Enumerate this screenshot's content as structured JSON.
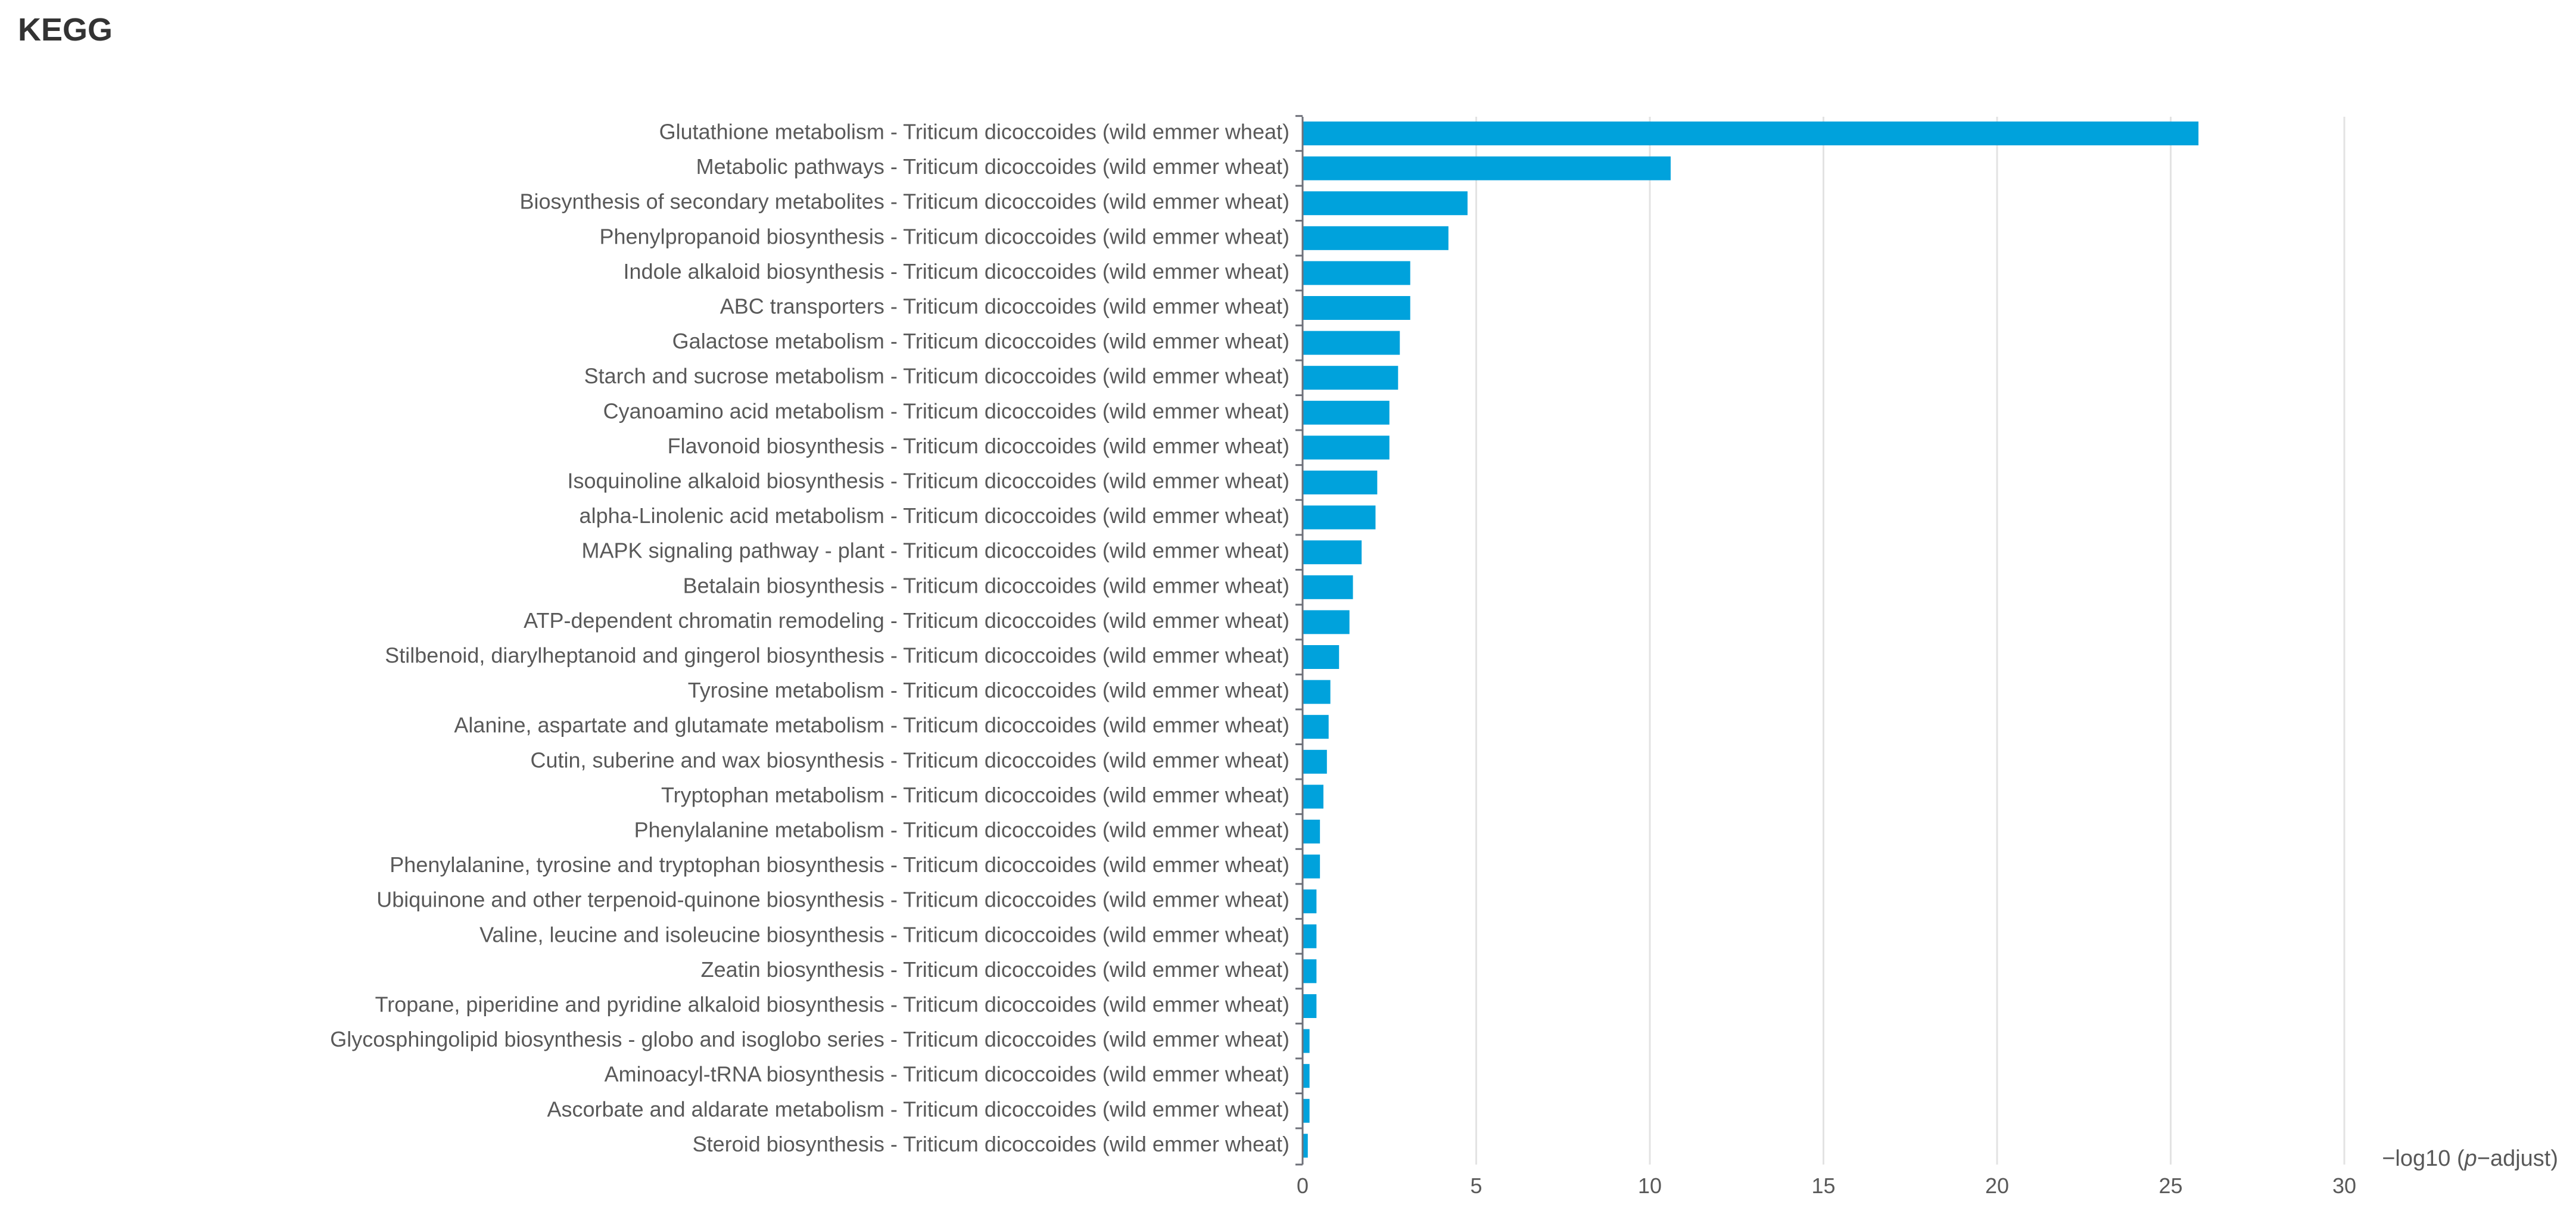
{
  "page": {
    "title": "KEGG"
  },
  "chart_data": {
    "type": "bar",
    "orientation": "horizontal",
    "xlabel": "−log10 (p−adjust)",
    "xlabel_parts": {
      "prefix": "−log10 (",
      "italic": "p",
      "suffix": "−adjust)"
    },
    "xlim": [
      0,
      30
    ],
    "xticks": [
      0,
      5,
      10,
      15,
      20,
      25,
      30
    ],
    "grid": "vertical",
    "bar_color": "#00a2dc",
    "categories": [
      "Glutathione metabolism - Triticum dicoccoides (wild emmer wheat)",
      "Metabolic pathways - Triticum dicoccoides (wild emmer wheat)",
      "Biosynthesis of secondary metabolites - Triticum dicoccoides (wild emmer wheat)",
      "Phenylpropanoid biosynthesis - Triticum dicoccoides (wild emmer wheat)",
      "Indole alkaloid biosynthesis - Triticum dicoccoides (wild emmer wheat)",
      "ABC transporters - Triticum dicoccoides (wild emmer wheat)",
      "Galactose metabolism - Triticum dicoccoides (wild emmer wheat)",
      "Starch and sucrose metabolism - Triticum dicoccoides (wild emmer wheat)",
      "Cyanoamino acid metabolism - Triticum dicoccoides (wild emmer wheat)",
      "Flavonoid biosynthesis - Triticum dicoccoides (wild emmer wheat)",
      "Isoquinoline alkaloid biosynthesis - Triticum dicoccoides (wild emmer wheat)",
      "alpha-Linolenic acid metabolism - Triticum dicoccoides (wild emmer wheat)",
      "MAPK signaling pathway - plant - Triticum dicoccoides (wild emmer wheat)",
      "Betalain biosynthesis - Triticum dicoccoides (wild emmer wheat)",
      "ATP-dependent chromatin remodeling - Triticum dicoccoides (wild emmer wheat)",
      "Stilbenoid, diarylheptanoid and gingerol biosynthesis - Triticum dicoccoides (wild emmer wheat)",
      "Tyrosine metabolism - Triticum dicoccoides (wild emmer wheat)",
      "Alanine, aspartate and glutamate metabolism - Triticum dicoccoides (wild emmer wheat)",
      "Cutin, suberine and wax biosynthesis - Triticum dicoccoides (wild emmer wheat)",
      "Tryptophan metabolism - Triticum dicoccoides (wild emmer wheat)",
      "Phenylalanine metabolism - Triticum dicoccoides (wild emmer wheat)",
      "Phenylalanine, tyrosine and tryptophan biosynthesis - Triticum dicoccoides (wild emmer wheat)",
      "Ubiquinone and other terpenoid-quinone biosynthesis - Triticum dicoccoides (wild emmer wheat)",
      "Valine, leucine and isoleucine biosynthesis - Triticum dicoccoides (wild emmer wheat)",
      "Zeatin biosynthesis - Triticum dicoccoides (wild emmer wheat)",
      "Tropane, piperidine and pyridine alkaloid biosynthesis - Triticum dicoccoides (wild emmer wheat)",
      "Glycosphingolipid biosynthesis - globo and isoglobo series - Triticum dicoccoides (wild emmer wheat)",
      "Aminoacyl-tRNA biosynthesis - Triticum dicoccoides (wild emmer wheat)",
      "Ascorbate and aldarate metabolism - Triticum dicoccoides (wild emmer wheat)",
      "Steroid biosynthesis - Triticum dicoccoides (wild emmer wheat)"
    ],
    "values": [
      25.8,
      10.6,
      4.75,
      4.2,
      3.1,
      3.1,
      2.8,
      2.75,
      2.5,
      2.5,
      2.15,
      2.1,
      1.7,
      1.45,
      1.35,
      1.05,
      0.8,
      0.75,
      0.7,
      0.6,
      0.5,
      0.5,
      0.4,
      0.4,
      0.4,
      0.4,
      0.2,
      0.2,
      0.2,
      0.15
    ]
  }
}
